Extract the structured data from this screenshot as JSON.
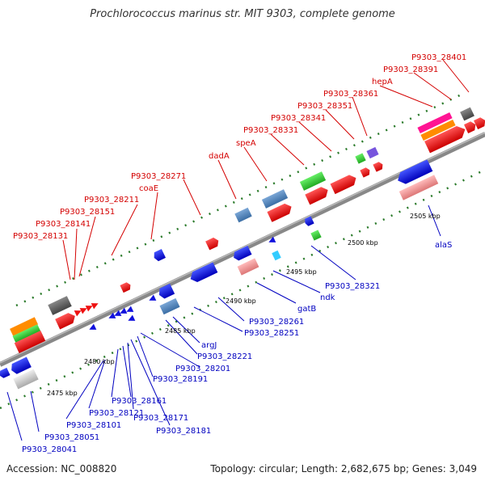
{
  "title": "Prochlorococcus marinus str. MIT 9303, complete genome",
  "footer": {
    "accession": "Accession: NC_008820",
    "summary": "Topology: circular; Length: 2,682,675 bp; Genes: 3,049"
  },
  "kbp_ticks": [
    "2475 kbp",
    "2480 kbp",
    "2485 kbp",
    "2490 kbp",
    "2495 kbp",
    "2500 kbp",
    "2505 kbp"
  ],
  "top_labels": [
    "P9303_28131",
    "P9303_28141",
    "P9303_28151",
    "P9303_28211",
    "coaE",
    "P9303_28271",
    "dadA",
    "speA",
    "P9303_28331",
    "P9303_28341",
    "P9303_28351",
    "P9303_28361",
    "hepA",
    "P9303_28391",
    "P9303_28401"
  ],
  "bottom_labels": [
    "P9303_28041",
    "P9303_28051",
    "P9303_28101",
    "P9303_28121",
    "P9303_28161",
    "P9303_28171",
    "P9303_28181",
    "P9303_28191",
    "P9303_28201",
    "P9303_28221",
    "argJ",
    "P9303_28251",
    "P9303_28261",
    "gatB",
    "ndk",
    "P9303_28321",
    "alaS"
  ],
  "colors": {
    "forward": "#ee1111",
    "reverse": "#1111dd",
    "backbone": "#888888",
    "tick": "#2a7a2a",
    "label_forward": "#d40000",
    "label_reverse": "#0000c0"
  }
}
